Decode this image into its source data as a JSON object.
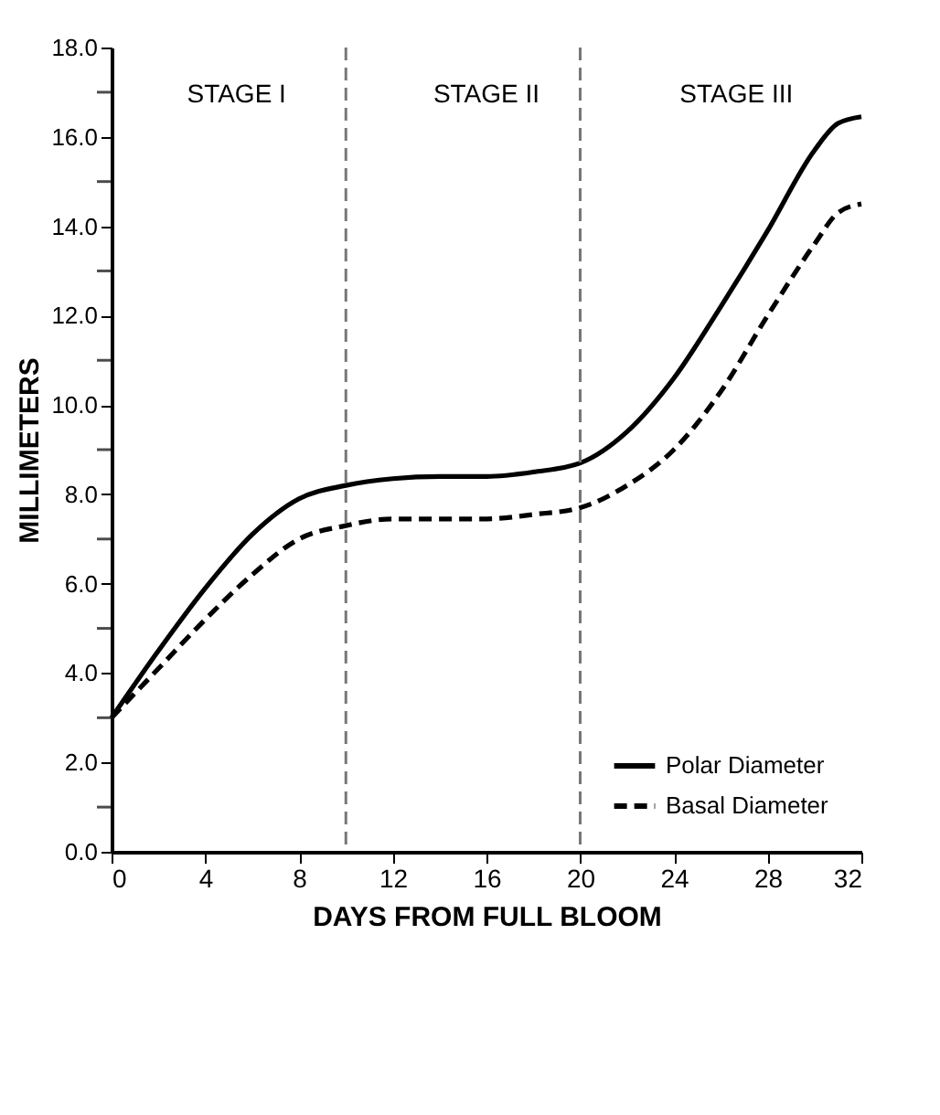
{
  "chart_data": {
    "type": "line",
    "xlabel": "DAYS FROM FULL BLOOM",
    "ylabel": "MILLIMETERS",
    "x": [
      0,
      2,
      4,
      6,
      8,
      10,
      12,
      14,
      16,
      18,
      20,
      22,
      24,
      26,
      28,
      30,
      31,
      32
    ],
    "series": [
      {
        "name": "Polar Diameter",
        "color": "#000000",
        "line_style": "solid",
        "values": [
          3.0,
          4.5,
          5.9,
          7.1,
          7.9,
          8.2,
          8.35,
          8.4,
          8.4,
          8.5,
          8.7,
          9.4,
          10.6,
          12.2,
          13.9,
          15.7,
          16.3,
          16.45
        ]
      },
      {
        "name": "Basal Diameter",
        "color": "#000000",
        "line_style": "dashed",
        "values": [
          3.0,
          4.1,
          5.2,
          6.2,
          7.0,
          7.3,
          7.45,
          7.45,
          7.45,
          7.55,
          7.7,
          8.2,
          9.0,
          10.3,
          12.0,
          13.6,
          14.3,
          14.5
        ]
      }
    ],
    "xlim": [
      0,
      32
    ],
    "xticks": [
      0,
      4,
      8,
      12,
      16,
      20,
      24,
      28,
      32
    ],
    "ylim": [
      0,
      18
    ],
    "yticks": [
      {
        "value": 0,
        "label": "0.0"
      },
      {
        "value": 1,
        "label": null
      },
      {
        "value": 2,
        "label": "2.0"
      },
      {
        "value": 3,
        "label": null
      },
      {
        "value": 4,
        "label": "4.0"
      },
      {
        "value": 5,
        "label": null
      },
      {
        "value": 6,
        "label": "6.0"
      },
      {
        "value": 7,
        "label": null
      },
      {
        "value": 8,
        "label": "8.0"
      },
      {
        "value": 9,
        "label": null
      },
      {
        "value": 10,
        "label": "10.0"
      },
      {
        "value": 11,
        "label": null
      },
      {
        "value": 12,
        "label": "12.0"
      },
      {
        "value": 13,
        "label": null
      },
      {
        "value": 14,
        "label": "14.0"
      },
      {
        "value": 15,
        "label": null
      },
      {
        "value": 16,
        "label": "16.0"
      },
      {
        "value": 17,
        "label": null
      },
      {
        "value": 18,
        "label": "18.0"
      }
    ],
    "ref_lines": [
      {
        "axis": "x",
        "value": 10,
        "color": "#777777",
        "line_style": "dashed"
      },
      {
        "axis": "x",
        "value": 20,
        "color": "#777777",
        "line_style": "dashed"
      }
    ],
    "annotations": [
      "STAGE I",
      "STAGE II",
      "STAGE III"
    ],
    "grid": false,
    "legend": "bottom right",
    "marker": "none"
  }
}
